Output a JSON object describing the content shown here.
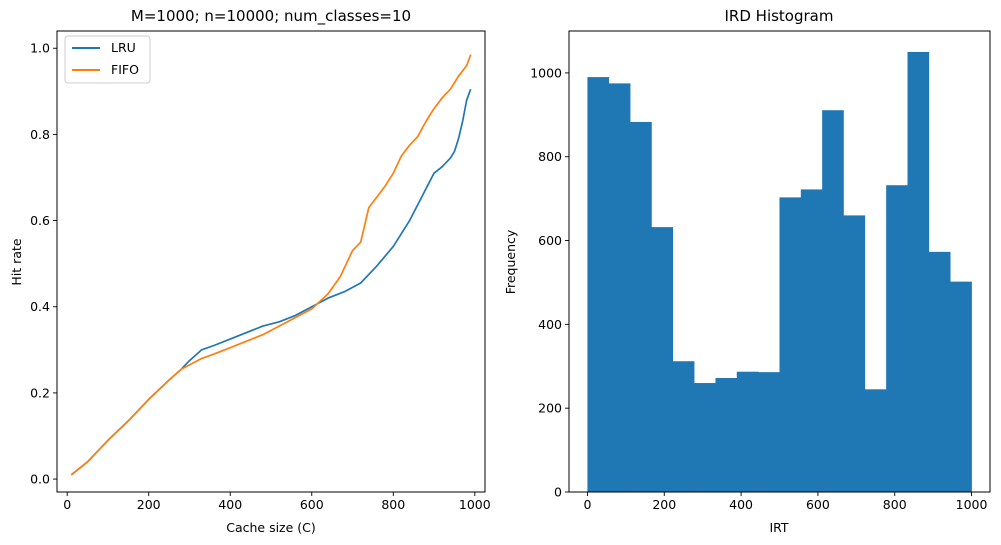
{
  "chart_data": [
    {
      "type": "line",
      "title": "M=1000; n=10000; num_classes=10",
      "xlabel": "Cache size (C)",
      "ylabel": "Hit rate",
      "xlim": [
        -25,
        1025
      ],
      "ylim": [
        -0.03,
        1.04
      ],
      "xticks": [
        0,
        200,
        400,
        600,
        800,
        1000
      ],
      "yticks": [
        0.0,
        0.2,
        0.4,
        0.6,
        0.8,
        1.0
      ],
      "ytick_labels": [
        "0.0",
        "0.2",
        "0.4",
        "0.6",
        "0.8",
        "1.0"
      ],
      "legend": "top-left",
      "series": [
        {
          "name": "LRU",
          "color": "#1f77b4",
          "x": [
            10,
            50,
            100,
            150,
            200,
            250,
            280,
            300,
            330,
            360,
            400,
            440,
            480,
            520,
            560,
            600,
            640,
            680,
            720,
            760,
            800,
            840,
            870,
            900,
            920,
            940,
            950,
            960,
            970,
            980,
            990
          ],
          "y": [
            0.01,
            0.04,
            0.09,
            0.135,
            0.185,
            0.23,
            0.255,
            0.275,
            0.3,
            0.31,
            0.325,
            0.34,
            0.355,
            0.365,
            0.38,
            0.4,
            0.42,
            0.435,
            0.455,
            0.495,
            0.54,
            0.6,
            0.655,
            0.71,
            0.725,
            0.745,
            0.76,
            0.79,
            0.83,
            0.88,
            0.905
          ]
        },
        {
          "name": "FIFO",
          "color": "#ff7f0e",
          "x": [
            10,
            50,
            100,
            150,
            200,
            250,
            280,
            300,
            330,
            360,
            400,
            440,
            480,
            520,
            560,
            600,
            640,
            670,
            690,
            700,
            720,
            740,
            760,
            780,
            800,
            820,
            840,
            860,
            880,
            900,
            920,
            940,
            960,
            980,
            990
          ],
          "y": [
            0.01,
            0.04,
            0.09,
            0.135,
            0.185,
            0.23,
            0.255,
            0.265,
            0.28,
            0.29,
            0.305,
            0.32,
            0.335,
            0.355,
            0.375,
            0.395,
            0.43,
            0.47,
            0.51,
            0.53,
            0.55,
            0.63,
            0.655,
            0.68,
            0.71,
            0.75,
            0.775,
            0.795,
            0.83,
            0.86,
            0.885,
            0.905,
            0.935,
            0.96,
            0.985
          ]
        }
      ]
    },
    {
      "type": "bar",
      "title": "IRD Histogram",
      "xlabel": "IRT",
      "ylabel": "Frequency",
      "xlim": [
        -48,
        1048
      ],
      "ylim": [
        0,
        1100
      ],
      "xticks": [
        0,
        200,
        400,
        600,
        800,
        1000
      ],
      "yticks": [
        0,
        200,
        400,
        600,
        800,
        1000
      ],
      "color": "#1f77b4",
      "bin_edges": [
        0,
        55.55,
        111.1,
        166.65,
        222.2,
        277.75,
        333.3,
        388.85,
        444.4,
        499.95,
        555.5,
        611.05,
        666.6,
        722.15,
        777.7,
        833.25,
        888.8,
        944.35,
        1000
      ],
      "values": [
        990,
        975,
        883,
        632,
        312,
        260,
        272,
        287,
        286,
        703,
        722,
        911,
        660,
        245,
        732,
        1050,
        573,
        502
      ]
    }
  ]
}
